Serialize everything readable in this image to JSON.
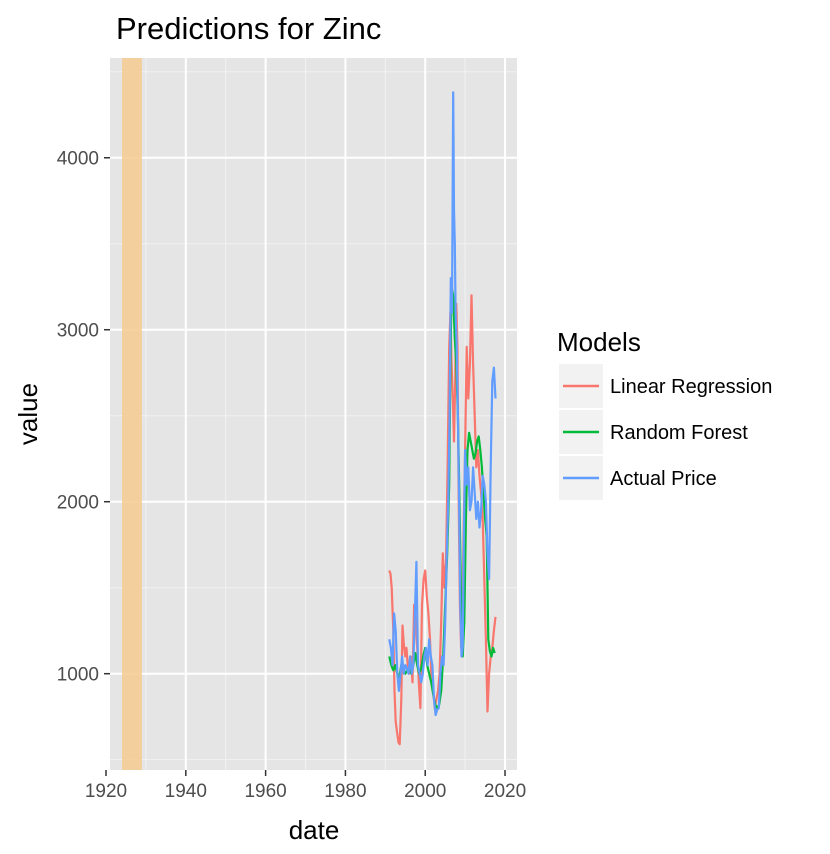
{
  "chart_data": {
    "type": "line",
    "title": "Predictions for Zinc",
    "xlabel": "date",
    "ylabel": "value",
    "xlim": [
      1921,
      2023
    ],
    "ylim": [
      440,
      4580
    ],
    "x_ticks": [
      1920,
      1940,
      1960,
      1980,
      2000,
      2020
    ],
    "y_ticks": [
      1000,
      2000,
      3000,
      4000
    ],
    "grid": true,
    "background": "#e5e5e5",
    "shaded_band": {
      "x_start": 1924,
      "x_end": 1929,
      "color": "#f5cb8f"
    },
    "legend": {
      "title": "Models",
      "position": "right",
      "entries": [
        "Linear Regression",
        "Random Forest",
        "Actual Price"
      ]
    },
    "series": [
      {
        "name": "Linear Regression",
        "color": "#f8766d",
        "x": [
          1991.0,
          1991.3,
          1991.6,
          1992.0,
          1992.3,
          1992.6,
          1993.0,
          1993.3,
          1993.6,
          1994.0,
          1994.3,
          1994.6,
          1995.0,
          1995.3,
          1995.6,
          1996.0,
          1996.4,
          1996.8,
          1997.2,
          1997.6,
          1998.0,
          1998.4,
          1998.8,
          1999.2,
          1999.6,
          2000.0,
          2000.4,
          2000.8,
          2001.2,
          2001.6,
          2002.0,
          2002.4,
          2002.8,
          2003.2,
          2003.6,
          2004.0,
          2004.4,
          2004.8,
          2005.2,
          2005.6,
          2006.0,
          2006.3,
          2006.6,
          2006.9,
          2007.2,
          2007.5,
          2007.8,
          2008.1,
          2008.4,
          2008.7,
          2009.0,
          2009.3,
          2009.6,
          2010.0,
          2010.4,
          2010.8,
          2011.2,
          2011.6,
          2012.0,
          2012.4,
          2012.8,
          2013.2,
          2013.6,
          2014.0,
          2014.4,
          2014.8,
          2015.2,
          2015.6,
          2016.0,
          2016.4,
          2016.8,
          2017.2,
          2017.6
        ],
        "values": [
          1600,
          1580,
          1500,
          1250,
          900,
          720,
          650,
          600,
          590,
          850,
          1280,
          1180,
          1100,
          1150,
          1050,
          1000,
          1100,
          950,
          1400,
          1300,
          1150,
          950,
          800,
          1400,
          1550,
          1600,
          1450,
          1350,
          1200,
          950,
          900,
          800,
          850,
          900,
          1000,
          1300,
          1700,
          1500,
          1650,
          2200,
          2900,
          3100,
          2800,
          2600,
          2350,
          2700,
          3150,
          2900,
          2000,
          1400,
          1150,
          1300,
          1800,
          2300,
          2900,
          2600,
          2800,
          3200,
          2800,
          2500,
          2200,
          2300,
          2150,
          2050,
          1900,
          1550,
          1200,
          780,
          1000,
          1100,
          1150,
          1250,
          1330
        ]
      },
      {
        "name": "Random Forest",
        "color": "#00ba38",
        "x": [
          1991.0,
          1991.5,
          1992.0,
          1992.5,
          1993.0,
          1993.5,
          1994.0,
          1994.5,
          1995.0,
          1995.5,
          1996.0,
          1996.5,
          1997.0,
          1997.5,
          1998.0,
          1998.5,
          1999.0,
          1999.5,
          2000.0,
          2000.5,
          2001.0,
          2001.5,
          2002.0,
          2002.5,
          2003.0,
          2003.5,
          2004.0,
          2004.5,
          2005.0,
          2005.5,
          2006.0,
          2006.3,
          2006.6,
          2007.0,
          2007.4,
          2007.8,
          2008.2,
          2008.6,
          2009.0,
          2009.4,
          2009.8,
          2010.2,
          2010.6,
          2011.0,
          2011.4,
          2011.8,
          2012.2,
          2012.6,
          2013.0,
          2013.4,
          2013.8,
          2014.2,
          2014.6,
          2015.0,
          2015.4,
          2015.8,
          2016.2,
          2016.6,
          2017.0,
          2017.4
        ],
        "values": [
          1100,
          1050,
          1020,
          1050,
          1000,
          980,
          1050,
          1030,
          1000,
          1020,
          1030,
          1000,
          1050,
          1120,
          1050,
          1000,
          1030,
          1100,
          1150,
          1050,
          1000,
          950,
          880,
          820,
          800,
          820,
          900,
          1100,
          1400,
          1700,
          2100,
          2800,
          3250,
          3200,
          2950,
          2800,
          2500,
          2000,
          1400,
          1100,
          1300,
          1900,
          2300,
          2400,
          2350,
          2300,
          2250,
          2280,
          2350,
          2380,
          2300,
          2200,
          2050,
          1900,
          1800,
          1200,
          1130,
          1100,
          1150,
          1120
        ]
      },
      {
        "name": "Actual Price",
        "color": "#619cff",
        "x": [
          1991.0,
          1991.4,
          1991.8,
          1992.2,
          1992.6,
          1993.0,
          1993.4,
          1993.8,
          1994.2,
          1994.6,
          1995.0,
          1995.4,
          1995.8,
          1996.2,
          1996.6,
          1997.0,
          1997.4,
          1997.8,
          1998.2,
          1998.6,
          1999.0,
          1999.4,
          1999.8,
          2000.2,
          2000.6,
          2001.0,
          2001.4,
          2001.8,
          2002.2,
          2002.6,
          2003.0,
          2003.4,
          2003.8,
          2004.2,
          2004.6,
          2005.0,
          2005.4,
          2005.8,
          2006.1,
          2006.4,
          2006.7,
          2007.0,
          2007.2,
          2007.4,
          2007.6,
          2007.9,
          2008.2,
          2008.5,
          2008.8,
          2009.1,
          2009.4,
          2009.7,
          2010.0,
          2010.4,
          2010.8,
          2011.2,
          2011.6,
          2012.0,
          2012.4,
          2012.8,
          2013.2,
          2013.6,
          2014.0,
          2014.4,
          2014.8,
          2015.2,
          2015.6,
          2016.0,
          2016.4,
          2016.8,
          2017.2,
          2017.6
        ],
        "values": [
          1200,
          1150,
          1050,
          1350,
          1250,
          1000,
          900,
          1000,
          1100,
          1000,
          1050,
          1030,
          1000,
          1100,
          1000,
          1050,
          1350,
          1650,
          1050,
          1000,
          950,
          1000,
          1100,
          1150,
          1050,
          1200,
          1100,
          1050,
          850,
          760,
          790,
          800,
          1000,
          1100,
          1050,
          1300,
          1700,
          2050,
          2500,
          3300,
          3100,
          4380,
          3700,
          3500,
          3100,
          2900,
          2500,
          2000,
          1400,
          1100,
          1150,
          1800,
          2300,
          2100,
          2200,
          1950,
          2000,
          2200,
          2050,
          1900,
          2000,
          1850,
          1950,
          2150,
          2100,
          2000,
          1700,
          1550,
          2200,
          2700,
          2780,
          2600
        ]
      }
    ]
  }
}
